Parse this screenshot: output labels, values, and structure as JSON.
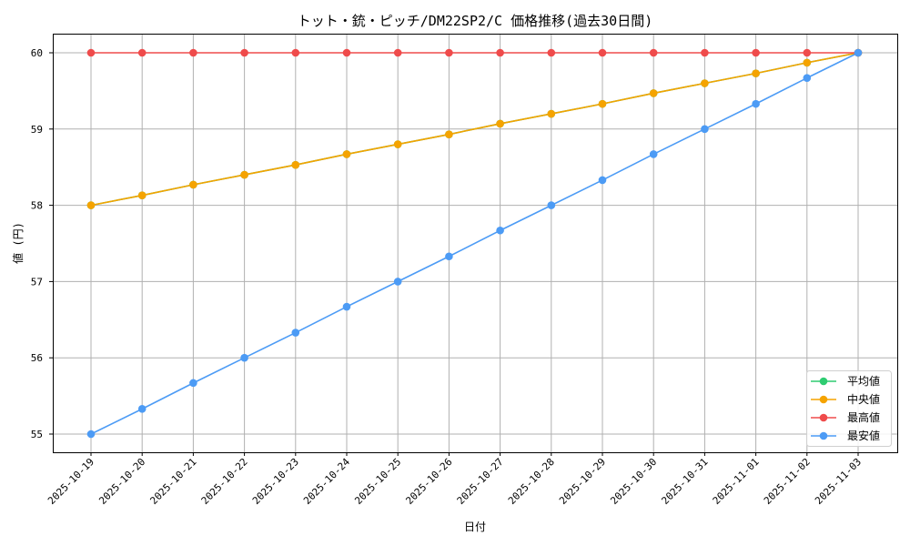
{
  "chart_data": {
    "type": "line",
    "title": "トット・銃・ピッチ/DM22SP2/C 価格推移(過去30日間)",
    "xlabel": "日付",
    "ylabel": "値 (円)",
    "ylim": [
      54.74,
      60.26
    ],
    "yticks": [
      55,
      56,
      57,
      58,
      59,
      60
    ],
    "grid": true,
    "legend_position": "lower right",
    "categories": [
      "2025-10-19",
      "2025-10-20",
      "2025-10-21",
      "2025-10-22",
      "2025-10-23",
      "2025-10-24",
      "2025-10-25",
      "2025-10-26",
      "2025-10-27",
      "2025-10-28",
      "2025-10-29",
      "2025-10-30",
      "2025-10-31",
      "2025-11-01",
      "2025-11-02",
      "2025-11-03"
    ],
    "series": [
      {
        "name": "平均値",
        "color": "#2ecc71",
        "values": [
          58.0,
          58.13,
          58.27,
          58.4,
          58.53,
          58.67,
          58.8,
          58.93,
          59.07,
          59.2,
          59.33,
          59.47,
          59.6,
          59.73,
          59.87,
          60.0
        ]
      },
      {
        "name": "中央値",
        "color": "#f5a300",
        "values": [
          58.0,
          58.13,
          58.27,
          58.4,
          58.53,
          58.67,
          58.8,
          58.93,
          59.07,
          59.2,
          59.33,
          59.47,
          59.6,
          59.73,
          59.87,
          60.0
        ]
      },
      {
        "name": "最高値",
        "color": "#ef4b4b",
        "values": [
          60,
          60,
          60,
          60,
          60,
          60,
          60,
          60,
          60,
          60,
          60,
          60,
          60,
          60,
          60,
          60
        ]
      },
      {
        "name": "最安値",
        "color": "#4c9bf5",
        "values": [
          55.0,
          55.33,
          55.67,
          56.0,
          56.33,
          56.67,
          57.0,
          57.33,
          57.67,
          58.0,
          58.33,
          58.67,
          59.0,
          59.33,
          59.67,
          60.0
        ]
      }
    ]
  }
}
